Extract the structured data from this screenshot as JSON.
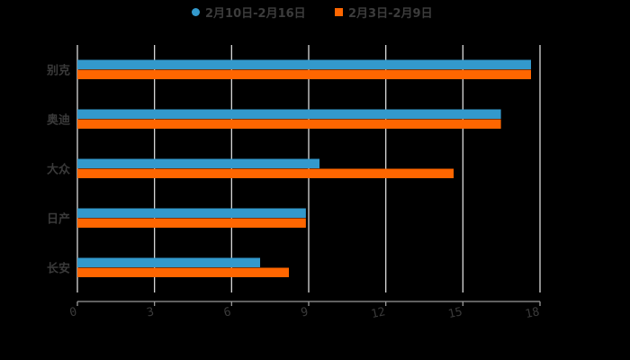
{
  "chart_data": {
    "type": "bar",
    "orientation": "horizontal",
    "title": "",
    "xlabel": "",
    "ylabel": "",
    "categories": [
      "别克",
      "奥迪",
      "大众",
      "日产",
      "长安"
    ],
    "series": [
      {
        "name": "2月10日-2月16日",
        "color": "#3399cc",
        "marker": "circle",
        "values": [
          17.65,
          16.48,
          9.42,
          8.89,
          7.11
        ]
      },
      {
        "name": "2月3日-2月9日",
        "color": "#ff6600",
        "marker": "square",
        "values": [
          17.65,
          16.48,
          14.64,
          8.89,
          8.23
        ]
      }
    ],
    "xlim": [
      0,
      18
    ],
    "xticks": [
      0,
      3,
      6,
      9,
      12,
      15,
      18
    ],
    "grid": true,
    "legend_position": "top"
  },
  "colors": {
    "background": "#000000",
    "grid": "#d9d9d9",
    "axis": "#9a9a9a",
    "text": "#3a3a3a"
  }
}
